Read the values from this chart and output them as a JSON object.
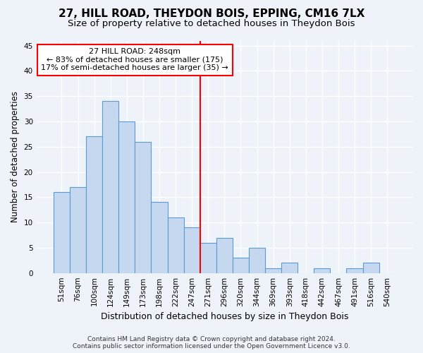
{
  "title": "27, HILL ROAD, THEYDON BOIS, EPPING, CM16 7LX",
  "subtitle": "Size of property relative to detached houses in Theydon Bois",
  "xlabel": "Distribution of detached houses by size in Theydon Bois",
  "ylabel": "Number of detached properties",
  "bin_labels": [
    "51sqm",
    "76sqm",
    "100sqm",
    "124sqm",
    "149sqm",
    "173sqm",
    "198sqm",
    "222sqm",
    "247sqm",
    "271sqm",
    "296sqm",
    "320sqm",
    "344sqm",
    "369sqm",
    "393sqm",
    "418sqm",
    "442sqm",
    "467sqm",
    "491sqm",
    "516sqm",
    "540sqm"
  ],
  "bar_heights": [
    16,
    17,
    27,
    34,
    30,
    26,
    14,
    11,
    9,
    6,
    7,
    3,
    5,
    1,
    2,
    0,
    1,
    0,
    1,
    2,
    0
  ],
  "bar_color": "#c5d8f0",
  "bar_edge_color": "#5b9bd5",
  "annotation_box_text": "27 HILL ROAD: 248sqm\n← 83% of detached houses are smaller (175)\n17% of semi-detached houses are larger (35) →",
  "annotation_box_color": "white",
  "annotation_box_edge_color": "red",
  "annotation_line_color": "red",
  "ylim": [
    0,
    46
  ],
  "yticks": [
    0,
    5,
    10,
    15,
    20,
    25,
    30,
    35,
    40,
    45
  ],
  "footer_line1": "Contains HM Land Registry data © Crown copyright and database right 2024.",
  "footer_line2": "Contains public sector information licensed under the Open Government Licence v3.0.",
  "background_color": "#eef3fa",
  "grid_color": "white",
  "title_fontsize": 11,
  "subtitle_fontsize": 9.5,
  "xlabel_fontsize": 9,
  "ylabel_fontsize": 8.5,
  "tick_fontsize": 7.5,
  "footer_fontsize": 6.5,
  "annotation_fontsize": 8
}
